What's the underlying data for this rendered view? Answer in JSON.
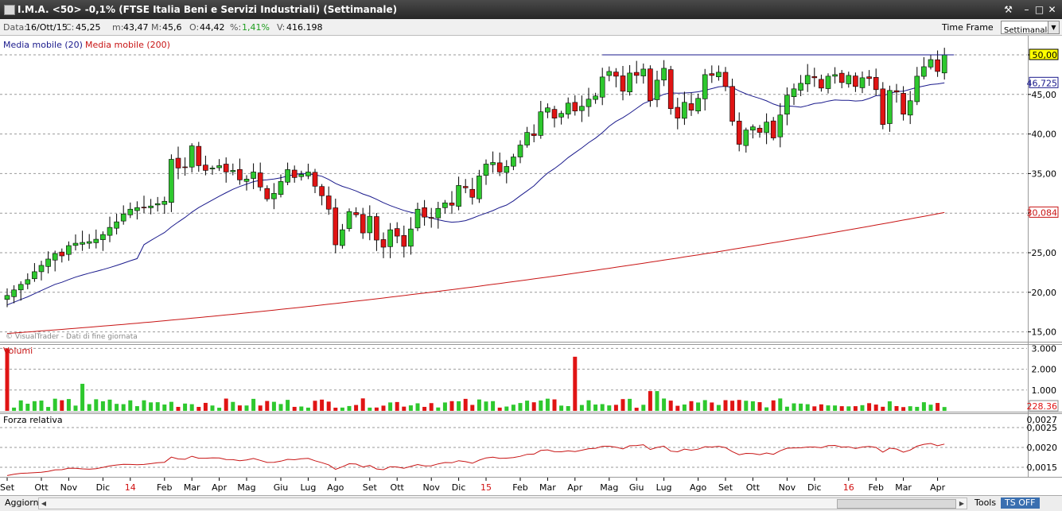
{
  "window": {
    "title": "I.M.A. <50> -0,1%  (FTSE Italia Beni e Servizi Industriali)  (Settimanale)",
    "buttons": [
      "tools-icon",
      "minimize-icon",
      "maximize-icon",
      "close-icon"
    ]
  },
  "info": {
    "data_label": "Data:",
    "data_value": "16/Ott/15",
    "c_label": "C:",
    "c_value": "45,25",
    "m_label": "m:",
    "m_value": "43,47",
    "M_label": "M:",
    "M_value": "45,6",
    "o_label": "O:",
    "o_value": "44,42",
    "pct_label": "%:",
    "pct_value": "1,41%",
    "v_label": "V:",
    "v_value": "416.198",
    "timeframe_label": "Time Frame",
    "timeframe_value": "Settimanale"
  },
  "legend": {
    "ma20": "Media mobile (20)",
    "ma200": "Media mobile (200)",
    "watermark": "© VisualTrader - Dati di fine giornata",
    "volume": "Volumi",
    "rs": "Forza relativa"
  },
  "colors": {
    "up": "#2ec82e",
    "down": "#e01414",
    "ma20": "#1a1a8c",
    "ma200": "#c81414",
    "rs": "#c81414",
    "hline": "#1a1a8c",
    "last_price_bg": "#ffff00"
  },
  "price_labels": {
    "last": "50,00",
    "ma20": "46,725",
    "ma200": "30,084",
    "volume_last": "228.36",
    "rs_last": "0,0027"
  },
  "statusbar": {
    "aggiorna": "Aggiorna",
    "tools": "Tools",
    "ts_off": "TS OFF"
  },
  "chart_data": {
    "type": "candlestick",
    "price_axis": {
      "ticks": [
        "50,00",
        "45,00",
        "40,00",
        "35,00",
        "30,00",
        "25,00",
        "20,00",
        "15,00"
      ],
      "values": [
        50,
        45,
        40,
        35,
        30,
        25,
        20,
        15
      ],
      "ylim": [
        14.5,
        55
      ]
    },
    "volume_axis": {
      "ticks": [
        "3.000",
        "2.000",
        "1.000"
      ],
      "values": [
        3000,
        2000,
        1000
      ],
      "ylim": [
        0,
        3100
      ]
    },
    "rs_axis": {
      "ticks": [
        "0,0025",
        "0,0020",
        "0,0015"
      ],
      "values": [
        0.0025,
        0.002,
        0.0015
      ],
      "ylim": [
        0.00123,
        0.00283
      ]
    },
    "x_labels": [
      {
        "t": "Set",
        "i": 0
      },
      {
        "t": "Ott",
        "i": 5
      },
      {
        "t": "Nov",
        "i": 9
      },
      {
        "t": "Dic",
        "i": 14
      },
      {
        "t": "14",
        "i": 18,
        "red": true
      },
      {
        "t": "Feb",
        "i": 23
      },
      {
        "t": "Mar",
        "i": 27
      },
      {
        "t": "Apr",
        "i": 31
      },
      {
        "t": "Mag",
        "i": 35
      },
      {
        "t": "Giu",
        "i": 40
      },
      {
        "t": "Lug",
        "i": 44
      },
      {
        "t": "Ago",
        "i": 48
      },
      {
        "t": "Set",
        "i": 53
      },
      {
        "t": "Ott",
        "i": 57
      },
      {
        "t": "Nov",
        "i": 62
      },
      {
        "t": "Dic",
        "i": 66
      },
      {
        "t": "15",
        "i": 70,
        "red": true
      },
      {
        "t": "Feb",
        "i": 75
      },
      {
        "t": "Mar",
        "i": 79
      },
      {
        "t": "Apr",
        "i": 83
      },
      {
        "t": "Mag",
        "i": 88
      },
      {
        "t": "Giu",
        "i": 92
      },
      {
        "t": "Lug",
        "i": 96
      },
      {
        "t": "Ago",
        "i": 101
      },
      {
        "t": "Set",
        "i": 105
      },
      {
        "t": "Ott",
        "i": 109
      },
      {
        "t": "Nov",
        "i": 114
      },
      {
        "t": "Dic",
        "i": 118
      },
      {
        "t": "16",
        "i": 123,
        "red": true
      },
      {
        "t": "Feb",
        "i": 127
      },
      {
        "t": "Mar",
        "i": 131
      },
      {
        "t": "Apr",
        "i": 136
      }
    ],
    "hline_value": 50,
    "hline_from_index": 87,
    "closes": [
      19.6,
      20.3,
      21.0,
      21.6,
      22.6,
      23.4,
      24.2,
      24.9,
      24.6,
      25.9,
      26.2,
      26.3,
      26.4,
      26.7,
      27.3,
      28.2,
      28.9,
      29.9,
      30.5,
      30.7,
      30.7,
      30.9,
      31.2,
      31.5,
      36.8,
      35.7,
      35.8,
      38.5,
      36.0,
      35.4,
      35.7,
      36.0,
      35.2,
      35.4,
      34.2,
      34.3,
      35.2,
      33.3,
      31.8,
      32.5,
      34.0,
      35.5,
      34.5,
      34.9,
      35.2,
      33.4,
      32.2,
      30.5,
      26.0,
      27.9,
      30.2,
      29.8,
      27.5,
      29.6,
      26.6,
      25.7,
      27.9,
      27.1,
      25.8,
      28.0,
      30.5,
      29.5,
      29.4,
      30.6,
      31.3,
      31.0,
      33.5,
      33.2,
      32.0,
      34.7,
      36.2,
      36.4,
      35.2,
      35.9,
      37.1,
      38.6,
      40.2,
      39.8,
      42.8,
      43.3,
      42.0,
      42.6,
      43.9,
      42.9,
      43.5,
      44.4,
      44.8,
      47.2,
      47.9,
      47.3,
      45.4,
      47.7,
      47.4,
      48.2,
      44.2,
      46.8,
      48.3,
      43.2,
      42.0,
      44.0,
      43.0,
      44.5,
      47.5,
      47.4,
      47.8,
      46.0,
      41.6,
      38.7,
      40.5,
      40.9,
      40.2,
      41.5,
      39.5,
      42.4,
      44.9,
      45.7,
      46.4,
      47.4,
      47.1,
      45.8,
      47.3,
      47.5,
      46.5,
      47.4,
      46.0,
      47.1,
      47.0,
      45.6,
      41.2,
      45.5,
      45.3,
      42.5,
      44.2,
      47.3,
      48.5,
      49.4,
      47.9,
      50.0
    ]
  }
}
